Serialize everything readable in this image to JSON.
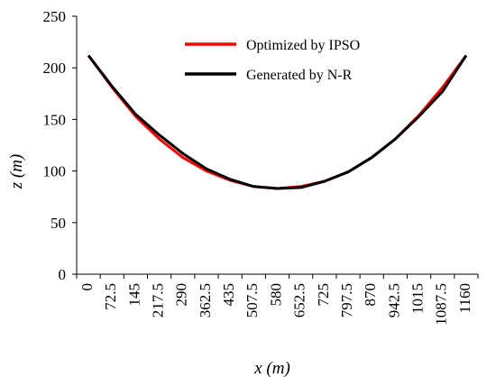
{
  "chart_data": {
    "type": "line",
    "xlabel": "x (m)",
    "ylabel": "z (m)",
    "ylim": [
      0,
      250
    ],
    "yticks": [
      0,
      50,
      100,
      150,
      200,
      250
    ],
    "x": [
      0,
      72.5,
      145,
      217.5,
      290,
      362.5,
      435,
      507.5,
      580,
      652.5,
      725,
      797.5,
      870,
      942.5,
      1015,
      1087.5,
      1160
    ],
    "x_tick_labels": [
      "0",
      "72.5",
      "145",
      "217.5",
      "290",
      "362.5",
      "435",
      "507.5",
      "580",
      "652.5",
      "725",
      "797.5",
      "870",
      "942.5",
      "1015",
      "1087.5",
      "1160"
    ],
    "series": [
      {
        "name": "Optimized by IPSO",
        "color": "#ff0000",
        "values": [
          212,
          181,
          153,
          131,
          113,
          100,
          91,
          85,
          83,
          85,
          90,
          99,
          113,
          131,
          154,
          181,
          212
        ]
      },
      {
        "name": "Generated by N-R",
        "color": "#000000",
        "values": [
          212,
          182,
          155,
          135,
          117,
          102,
          92,
          85,
          83,
          84,
          90,
          99,
          113,
          131,
          153,
          177,
          212
        ]
      }
    ],
    "legend_position": "top-center",
    "grid": false
  }
}
